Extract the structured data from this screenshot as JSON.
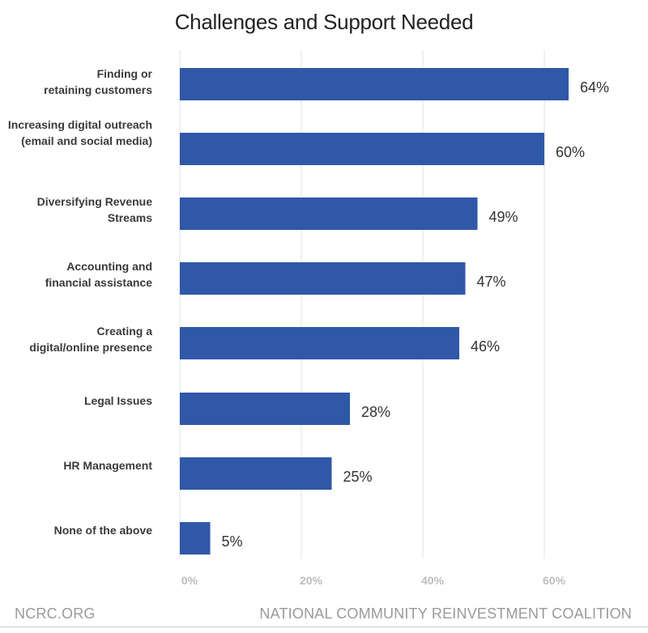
{
  "chart_data": {
    "type": "bar",
    "orientation": "horizontal",
    "title": "Challenges and Support Needed",
    "categories": [
      "Finding or\nretaining customers",
      "Increasing digital outreach\n(email and social media)",
      "Diversifying Revenue\nStreams",
      "Accounting and\nfinancial assistance",
      "Creating a\ndigital/online presence",
      "Legal Issues",
      "HR Management",
      "None of the above"
    ],
    "values": [
      64,
      60,
      49,
      47,
      46,
      28,
      25,
      5
    ],
    "value_labels": [
      "64%",
      "60%",
      "49%",
      "47%",
      "46%",
      "28%",
      "25%",
      "5%"
    ],
    "xticks": [
      0,
      20,
      40,
      60
    ],
    "xtick_labels": [
      "0%",
      "20%",
      "40%",
      "60%"
    ],
    "xlim": [
      0,
      70
    ],
    "xlabel": "",
    "ylabel": "",
    "grid": true,
    "bar_color": "#2f58a8"
  },
  "footer": {
    "left": "NCRC.ORG",
    "right": "NATIONAL COMMUNITY REINVESTMENT COALITION"
  }
}
